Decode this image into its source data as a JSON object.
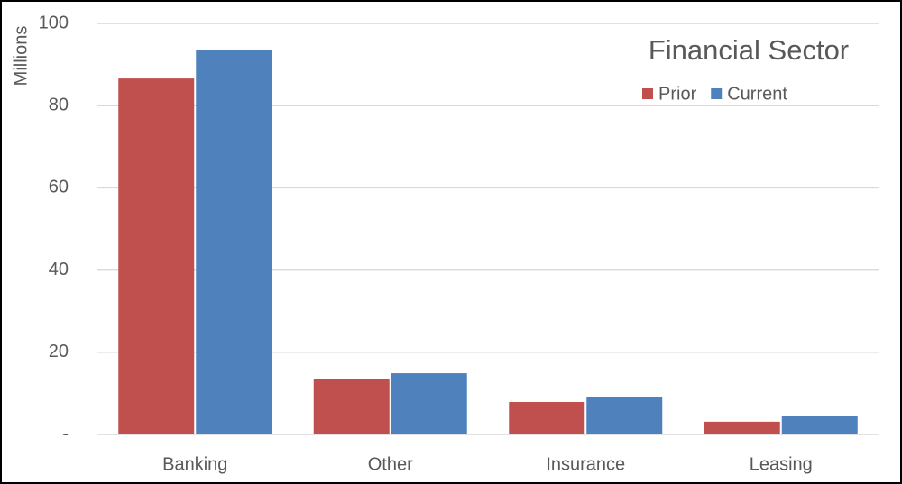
{
  "chart_data": {
    "type": "bar",
    "title": "Financial Sector",
    "y_label": "Millions",
    "categories": [
      "Banking",
      "Other",
      "Insurance",
      "Leasing"
    ],
    "series": [
      {
        "name": "Prior",
        "color": "#c0504d",
        "values": [
          86.6,
          13.6,
          7.9,
          3.1
        ]
      },
      {
        "name": "Current",
        "color": "#4f81bd",
        "values": [
          93.6,
          14.9,
          9.0,
          4.6
        ]
      }
    ],
    "ylim": [
      0,
      100
    ],
    "yticks": [
      {
        "value": 0,
        "label": "-"
      },
      20,
      40,
      60,
      80,
      100
    ],
    "grid": true,
    "legend": "top-right"
  }
}
